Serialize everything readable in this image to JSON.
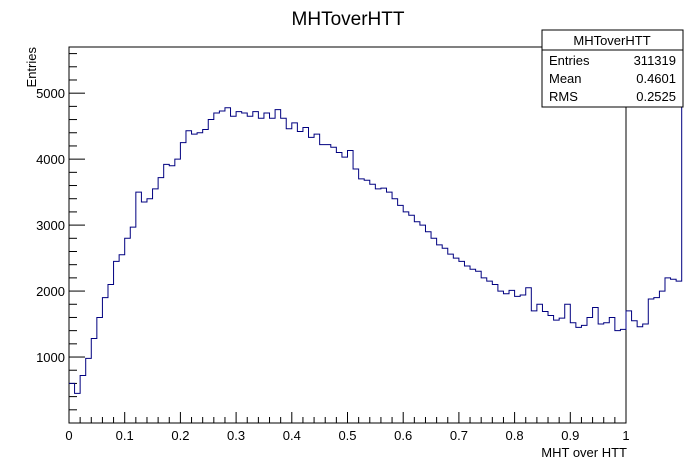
{
  "chart_data": {
    "type": "histogram",
    "title": "MHToverHTT",
    "xlabel": "MHT over HTT",
    "ylabel": "Entries",
    "xlim": [
      0,
      1
    ],
    "ylim": [
      0,
      5700
    ],
    "bin_width": 0.01,
    "x_ticks": [
      "0",
      "0.1",
      "0.2",
      "0.3",
      "0.4",
      "0.5",
      "0.6",
      "0.7",
      "0.8",
      "0.9",
      "1"
    ],
    "y_ticks": [
      "1000",
      "2000",
      "3000",
      "4000",
      "5000"
    ],
    "x_tick_values": [
      0,
      0.1,
      0.2,
      0.3,
      0.4,
      0.5,
      0.6,
      0.7,
      0.8,
      0.9,
      1.0
    ],
    "y_tick_values": [
      1000,
      2000,
      3000,
      4000,
      5000
    ],
    "line_color": "#000080",
    "values": [
      600,
      450,
      720,
      980,
      1280,
      1600,
      1900,
      2100,
      2450,
      2550,
      2800,
      2970,
      3500,
      3350,
      3400,
      3550,
      3720,
      3920,
      3900,
      4000,
      4250,
      4430,
      4380,
      4400,
      4450,
      4600,
      4700,
      4730,
      4780,
      4650,
      4720,
      4700,
      4650,
      4720,
      4620,
      4700,
      4620,
      4750,
      4620,
      4460,
      4550,
      4420,
      4480,
      4330,
      4380,
      4220,
      4220,
      4180,
      4100,
      4030,
      4130,
      3850,
      3700,
      3680,
      3620,
      3550,
      3560,
      3500,
      3400,
      3300,
      3200,
      3150,
      3050,
      3000,
      2900,
      2800,
      2700,
      2650,
      2560,
      2500,
      2450,
      2380,
      2330,
      2300,
      2200,
      2150,
      2100,
      2000,
      1960,
      2010,
      1920,
      1940,
      2050,
      1700,
      1800,
      1690,
      1630,
      1560,
      1590,
      1800,
      1520,
      1450,
      1480,
      1600,
      1750,
      1500,
      1520,
      1600,
      1400,
      1420,
      1700,
      1550,
      1460,
      1500,
      1880,
      1900,
      2000,
      2200,
      2180,
      2150
    ],
    "stats": {
      "name": "MHToverHTT",
      "rows": [
        {
          "label": "Entries",
          "value": "311319"
        },
        {
          "label": "Mean",
          "value": "0.4601"
        },
        {
          "label": "RMS",
          "value": "0.2525"
        }
      ]
    }
  }
}
